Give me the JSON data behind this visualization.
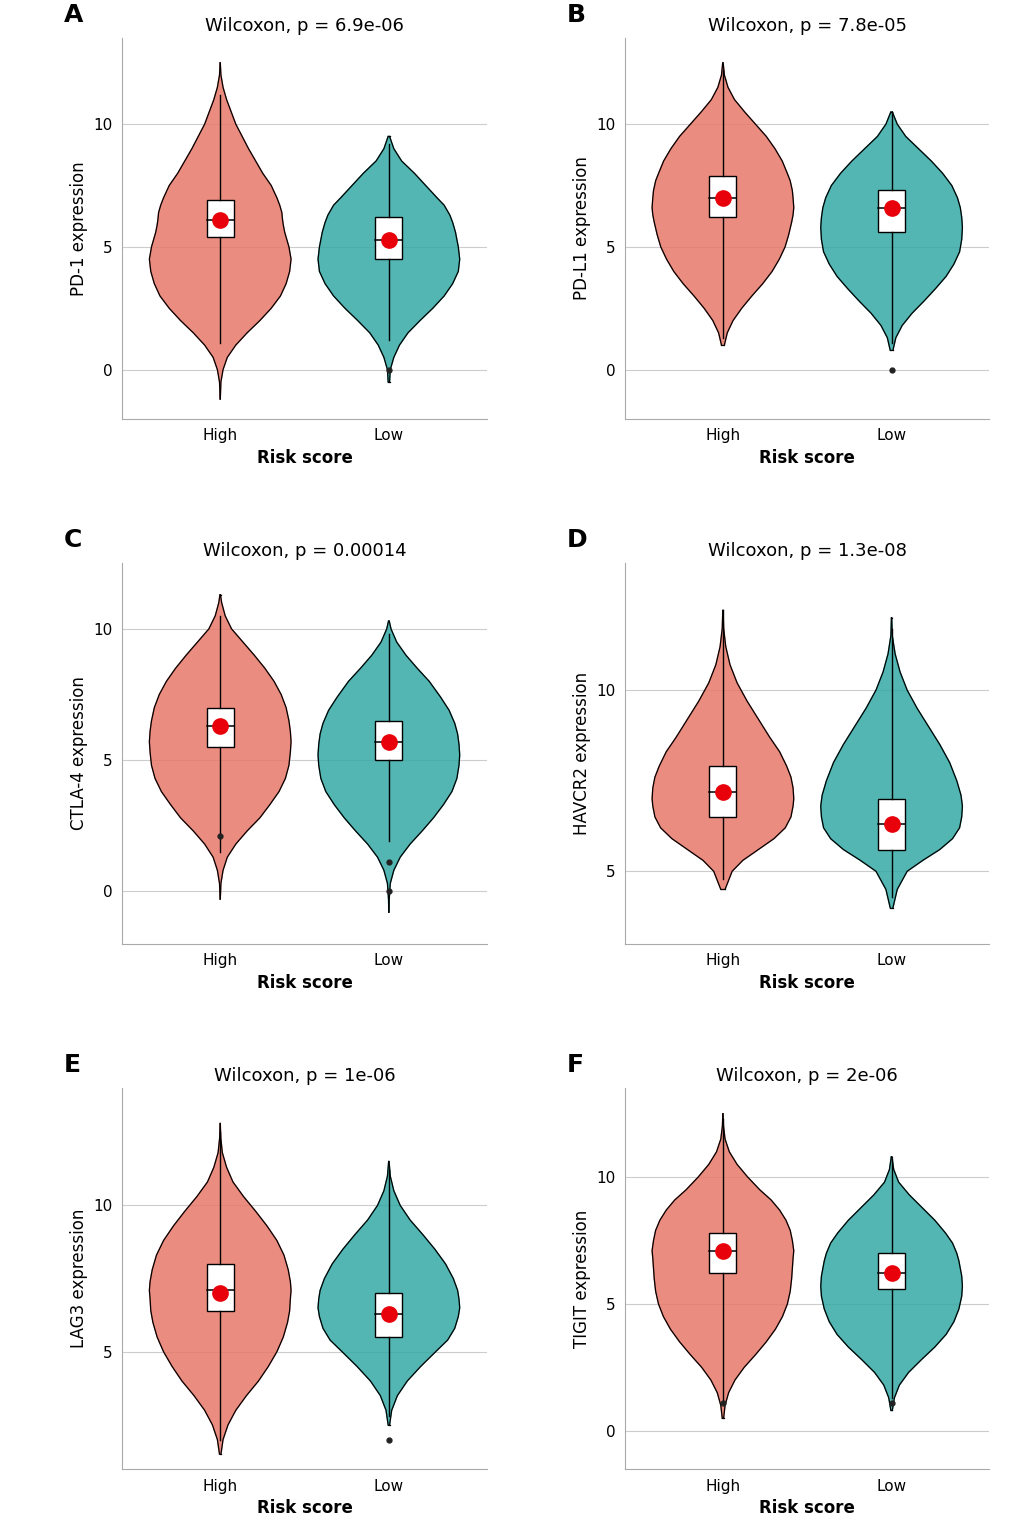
{
  "panels": [
    {
      "label": "A",
      "title": "Wilcoxon, p = 6.9e-06",
      "ylabel": "PD-1 expression",
      "high": {
        "median": 6.1,
        "q1": 5.4,
        "q3": 6.9,
        "whisker_low": 1.1,
        "whisker_high": 11.2,
        "outliers_low": [],
        "outliers_high": [],
        "mean": 6.1,
        "violin_y": [
          -1.2,
          -0.5,
          0.0,
          0.5,
          1.0,
          1.5,
          2.0,
          2.5,
          3.0,
          3.5,
          4.0,
          4.5,
          5.0,
          5.3,
          5.6,
          5.9,
          6.1,
          6.4,
          6.7,
          7.0,
          7.5,
          8.0,
          9.0,
          10.0,
          11.0,
          11.5,
          12.0,
          12.5
        ],
        "violin_w": [
          0.001,
          0.01,
          0.04,
          0.1,
          0.22,
          0.38,
          0.56,
          0.72,
          0.85,
          0.93,
          0.98,
          1.0,
          0.97,
          0.94,
          0.91,
          0.89,
          0.88,
          0.87,
          0.84,
          0.8,
          0.72,
          0.6,
          0.4,
          0.22,
          0.09,
          0.04,
          0.01,
          0.001
        ]
      },
      "low": {
        "median": 5.3,
        "q1": 4.5,
        "q3": 6.2,
        "whisker_low": 1.2,
        "whisker_high": 9.2,
        "outliers_low": [
          0.0
        ],
        "outliers_high": [],
        "mean": 5.3,
        "violin_y": [
          -0.5,
          0.0,
          0.5,
          1.0,
          1.5,
          2.0,
          2.5,
          3.0,
          3.5,
          4.0,
          4.5,
          5.0,
          5.3,
          5.6,
          6.0,
          6.3,
          6.7,
          7.0,
          7.5,
          8.0,
          8.5,
          9.0,
          9.5
        ],
        "violin_w": [
          0.01,
          0.02,
          0.07,
          0.15,
          0.27,
          0.44,
          0.62,
          0.78,
          0.9,
          0.98,
          1.0,
          0.98,
          0.96,
          0.94,
          0.9,
          0.86,
          0.78,
          0.68,
          0.52,
          0.36,
          0.18,
          0.07,
          0.01
        ]
      },
      "ylim": [
        -2.0,
        13.5
      ],
      "yticks": [
        0,
        5,
        10
      ]
    },
    {
      "label": "B",
      "title": "Wilcoxon, p = 7.8e-05",
      "ylabel": "PD-L1 expression",
      "high": {
        "median": 7.0,
        "q1": 6.2,
        "q3": 7.9,
        "whisker_low": 1.3,
        "whisker_high": 12.2,
        "outliers_low": [],
        "outliers_high": [],
        "mean": 7.0,
        "violin_y": [
          1.0,
          1.5,
          2.0,
          2.5,
          3.0,
          3.5,
          4.0,
          4.5,
          5.0,
          5.5,
          6.0,
          6.3,
          6.6,
          7.0,
          7.3,
          7.7,
          8.0,
          8.5,
          9.0,
          9.5,
          10.0,
          10.5,
          11.0,
          11.5,
          12.0,
          12.5
        ],
        "violin_w": [
          0.02,
          0.06,
          0.14,
          0.26,
          0.4,
          0.55,
          0.68,
          0.78,
          0.86,
          0.91,
          0.95,
          0.97,
          0.98,
          0.97,
          0.96,
          0.93,
          0.89,
          0.82,
          0.72,
          0.6,
          0.45,
          0.3,
          0.16,
          0.07,
          0.02,
          0.003
        ]
      },
      "low": {
        "median": 6.6,
        "q1": 5.6,
        "q3": 7.3,
        "whisker_low": 1.1,
        "whisker_high": 10.5,
        "outliers_low": [
          0.0
        ],
        "outliers_high": [],
        "mean": 6.6,
        "violin_y": [
          0.8,
          1.3,
          1.8,
          2.3,
          2.8,
          3.3,
          3.8,
          4.3,
          4.8,
          5.3,
          5.8,
          6.2,
          6.6,
          7.0,
          7.5,
          8.0,
          8.5,
          9.0,
          9.5,
          10.0,
          10.5
        ],
        "violin_w": [
          0.02,
          0.06,
          0.15,
          0.29,
          0.46,
          0.62,
          0.77,
          0.88,
          0.96,
          0.99,
          1.0,
          0.99,
          0.97,
          0.93,
          0.85,
          0.72,
          0.56,
          0.38,
          0.2,
          0.08,
          0.01
        ]
      },
      "ylim": [
        -2.0,
        13.5
      ],
      "yticks": [
        0,
        5,
        10
      ]
    },
    {
      "label": "C",
      "title": "Wilcoxon, p = 0.00014",
      "ylabel": "CTLA-4 expression",
      "high": {
        "median": 6.3,
        "q1": 5.5,
        "q3": 7.0,
        "whisker_low": 1.5,
        "whisker_high": 10.5,
        "outliers_low": [
          2.1
        ],
        "outliers_high": [],
        "mean": 6.3,
        "violin_y": [
          -0.3,
          0.3,
          0.8,
          1.3,
          1.8,
          2.3,
          2.8,
          3.3,
          3.8,
          4.3,
          4.8,
          5.3,
          5.7,
          6.1,
          6.5,
          7.0,
          7.5,
          8.0,
          8.5,
          9.0,
          9.5,
          10.0,
          10.5,
          11.0,
          11.3
        ],
        "violin_w": [
          0.001,
          0.01,
          0.04,
          0.1,
          0.22,
          0.38,
          0.56,
          0.7,
          0.83,
          0.92,
          0.97,
          0.99,
          1.0,
          0.99,
          0.97,
          0.93,
          0.86,
          0.76,
          0.63,
          0.48,
          0.32,
          0.16,
          0.07,
          0.02,
          0.004
        ]
      },
      "low": {
        "median": 5.7,
        "q1": 5.0,
        "q3": 6.5,
        "whisker_low": 1.9,
        "whisker_high": 9.8,
        "outliers_low": [
          0.0,
          1.1
        ],
        "outliers_high": [],
        "mean": 5.7,
        "violin_y": [
          -0.8,
          -0.3,
          0.3,
          0.8,
          1.3,
          1.8,
          2.3,
          2.8,
          3.3,
          3.8,
          4.3,
          4.8,
          5.2,
          5.6,
          6.0,
          6.4,
          6.9,
          7.4,
          8.0,
          8.5,
          9.0,
          9.5,
          10.0,
          10.3
        ],
        "violin_w": [
          0.001,
          0.005,
          0.02,
          0.07,
          0.16,
          0.3,
          0.47,
          0.63,
          0.77,
          0.89,
          0.96,
          0.99,
          1.0,
          0.99,
          0.97,
          0.93,
          0.85,
          0.73,
          0.57,
          0.4,
          0.24,
          0.11,
          0.03,
          0.005
        ]
      },
      "ylim": [
        -2.0,
        12.5
      ],
      "yticks": [
        0,
        5,
        10
      ]
    },
    {
      "label": "D",
      "title": "Wilcoxon, p = 1.3e-08",
      "ylabel": "HAVCR2 expression",
      "high": {
        "median": 7.2,
        "q1": 6.5,
        "q3": 7.9,
        "whisker_low": 4.8,
        "whisker_high": 12.2,
        "outliers_low": [],
        "outliers_high": [],
        "mean": 7.2,
        "violin_y": [
          4.5,
          5.0,
          5.3,
          5.6,
          5.9,
          6.2,
          6.5,
          6.8,
          7.0,
          7.3,
          7.6,
          7.9,
          8.3,
          8.7,
          9.2,
          9.7,
          10.2,
          10.7,
          11.2,
          11.7,
          12.2
        ],
        "violin_w": [
          0.03,
          0.13,
          0.28,
          0.5,
          0.72,
          0.88,
          0.96,
          0.99,
          1.0,
          0.99,
          0.96,
          0.9,
          0.8,
          0.66,
          0.5,
          0.34,
          0.2,
          0.1,
          0.04,
          0.01,
          0.002
        ]
      },
      "low": {
        "median": 6.3,
        "q1": 5.6,
        "q3": 7.0,
        "whisker_low": 4.3,
        "whisker_high": 11.7,
        "outliers_low": [],
        "outliers_high": [],
        "mean": 6.3,
        "violin_y": [
          4.0,
          4.5,
          5.0,
          5.3,
          5.6,
          5.9,
          6.2,
          6.5,
          6.8,
          7.1,
          7.5,
          8.0,
          8.5,
          9.0,
          9.5,
          10.0,
          10.5,
          11.0,
          11.5,
          12.0
        ],
        "violin_w": [
          0.02,
          0.08,
          0.22,
          0.44,
          0.68,
          0.86,
          0.96,
          0.99,
          1.0,
          0.98,
          0.92,
          0.82,
          0.68,
          0.52,
          0.36,
          0.22,
          0.12,
          0.05,
          0.01,
          0.002
        ]
      },
      "ylim": [
        3.0,
        13.5
      ],
      "yticks": [
        5,
        10
      ]
    },
    {
      "label": "E",
      "title": "Wilcoxon, p = 1e-06",
      "ylabel": "LAG3 expression",
      "high": {
        "median": 7.1,
        "q1": 6.4,
        "q3": 8.0,
        "whisker_low": 2.0,
        "whisker_high": 12.5,
        "outliers_low": [],
        "outliers_high": [],
        "mean": 7.0,
        "violin_y": [
          1.5,
          2.0,
          2.5,
          3.0,
          3.5,
          4.0,
          4.5,
          5.0,
          5.5,
          6.0,
          6.4,
          6.8,
          7.1,
          7.4,
          7.8,
          8.3,
          8.8,
          9.3,
          9.8,
          10.3,
          10.8,
          11.3,
          11.8,
          12.3,
          12.8
        ],
        "violin_w": [
          0.01,
          0.04,
          0.11,
          0.22,
          0.37,
          0.54,
          0.68,
          0.8,
          0.89,
          0.95,
          0.98,
          0.99,
          1.0,
          0.99,
          0.96,
          0.9,
          0.8,
          0.66,
          0.5,
          0.33,
          0.18,
          0.09,
          0.03,
          0.008,
          0.001
        ]
      },
      "low": {
        "median": 6.3,
        "q1": 5.5,
        "q3": 7.0,
        "whisker_low": 2.8,
        "whisker_high": 11.2,
        "outliers_low": [
          2.0
        ],
        "outliers_high": [],
        "mean": 6.3,
        "violin_y": [
          2.5,
          3.0,
          3.5,
          4.0,
          4.5,
          5.0,
          5.4,
          5.8,
          6.2,
          6.5,
          6.8,
          7.1,
          7.5,
          8.0,
          8.5,
          9.0,
          9.5,
          10.0,
          10.5,
          11.0,
          11.5
        ],
        "violin_w": [
          0.01,
          0.04,
          0.12,
          0.26,
          0.45,
          0.66,
          0.83,
          0.93,
          0.98,
          1.0,
          0.99,
          0.97,
          0.91,
          0.8,
          0.65,
          0.48,
          0.3,
          0.16,
          0.07,
          0.02,
          0.003
        ]
      },
      "ylim": [
        1.0,
        14.0
      ],
      "yticks": [
        5,
        10
      ]
    },
    {
      "label": "F",
      "title": "Wilcoxon, p = 2e-06",
      "ylabel": "TIGIT expression",
      "high": {
        "median": 7.1,
        "q1": 6.2,
        "q3": 7.8,
        "whisker_low": 1.2,
        "whisker_high": 12.3,
        "outliers_low": [
          1.1
        ],
        "outliers_high": [],
        "mean": 7.1,
        "violin_y": [
          0.5,
          1.0,
          1.5,
          2.0,
          2.5,
          3.0,
          3.5,
          4.0,
          4.5,
          5.0,
          5.5,
          6.0,
          6.4,
          6.8,
          7.1,
          7.5,
          7.9,
          8.3,
          8.7,
          9.1,
          9.5,
          10.0,
          10.5,
          11.0,
          11.5,
          12.0,
          12.5
        ],
        "violin_w": [
          0.01,
          0.03,
          0.08,
          0.17,
          0.3,
          0.46,
          0.61,
          0.74,
          0.84,
          0.91,
          0.95,
          0.97,
          0.98,
          0.99,
          1.0,
          0.98,
          0.95,
          0.89,
          0.8,
          0.68,
          0.52,
          0.35,
          0.2,
          0.09,
          0.03,
          0.008,
          0.001
        ]
      },
      "low": {
        "median": 6.2,
        "q1": 5.6,
        "q3": 7.0,
        "whisker_low": 1.3,
        "whisker_high": 10.7,
        "outliers_low": [
          1.1
        ],
        "outliers_high": [],
        "mean": 6.2,
        "violin_y": [
          0.8,
          1.3,
          1.8,
          2.3,
          2.8,
          3.3,
          3.8,
          4.3,
          4.8,
          5.3,
          5.7,
          6.1,
          6.4,
          6.7,
          7.0,
          7.4,
          7.8,
          8.3,
          8.8,
          9.3,
          9.8,
          10.3,
          10.8
        ],
        "violin_w": [
          0.01,
          0.04,
          0.11,
          0.24,
          0.42,
          0.61,
          0.77,
          0.88,
          0.95,
          0.99,
          1.0,
          0.99,
          0.97,
          0.95,
          0.92,
          0.86,
          0.76,
          0.61,
          0.43,
          0.25,
          0.1,
          0.03,
          0.004
        ]
      },
      "ylim": [
        -1.5,
        13.5
      ],
      "yticks": [
        0,
        5,
        10
      ]
    }
  ],
  "high_color": "#E8786A",
  "low_color": "#35A9A5",
  "mean_color": "#E8000A",
  "bg_color": "#FFFFFF",
  "grid_color": "#CCCCCC",
  "violin_width": 0.42,
  "box_width": 0.16,
  "xlabel": "Risk score",
  "label_fontsize": 18,
  "title_fontsize": 13,
  "axis_fontsize": 12,
  "tick_fontsize": 11
}
